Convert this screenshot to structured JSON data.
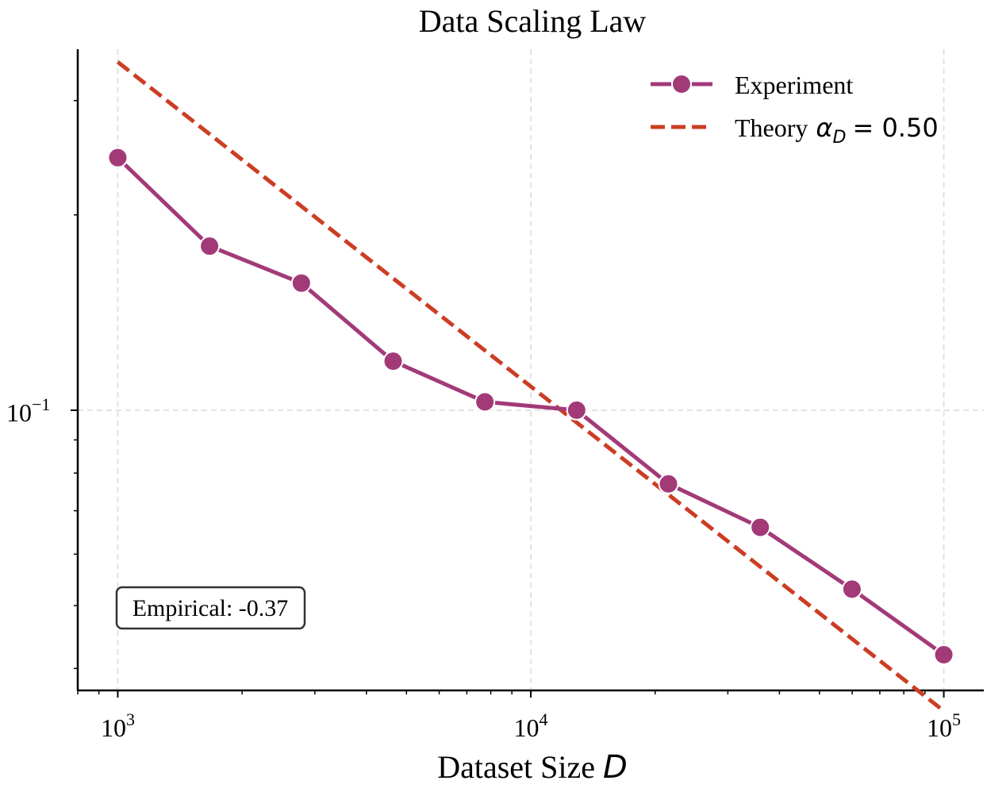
{
  "chart_data": {
    "type": "line",
    "title": "Data Scaling Law",
    "xlabel_text": "Dataset Size",
    "xlabel_var": "D",
    "x_scale": "log",
    "y_scale": "log",
    "xlim": [
      800,
      125000
    ],
    "ylim": [
      0.037,
      0.36
    ],
    "x_ticks": [
      {
        "value": 1000,
        "base": "10",
        "exp": "3"
      },
      {
        "value": 10000,
        "base": "10",
        "exp": "4"
      },
      {
        "value": 100000,
        "base": "10",
        "exp": "5"
      }
    ],
    "y_ticks": [
      {
        "value": 0.1,
        "base": "10",
        "exp": "−1"
      }
    ],
    "grid": true,
    "legend_position": "top-right",
    "series": [
      {
        "name": "Experiment",
        "style": "line-markers",
        "color": "#a23a78",
        "x": [
          1000,
          1668,
          2783,
          4642,
          7743,
          12915,
          21544,
          35938,
          59948,
          100000
        ],
        "y": [
          0.245,
          0.179,
          0.157,
          0.119,
          0.103,
          0.1,
          0.077,
          0.066,
          0.053,
          0.042
        ]
      },
      {
        "name_prefix": "Theory",
        "name_math": "α",
        "name_math_sub": "D",
        "name_value": "= 0.50",
        "style": "dashed",
        "color": "#cc3d24",
        "x": [
          1000,
          100000
        ],
        "y": [
          0.344,
          0.0344
        ]
      }
    ],
    "annotations": [
      {
        "text": "Empirical: -0.37",
        "position": "bottom-left"
      }
    ]
  }
}
